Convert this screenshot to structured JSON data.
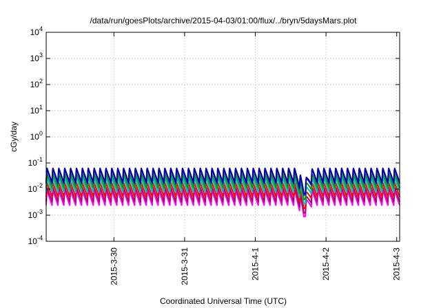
{
  "chart_data": {
    "type": "line",
    "title": "/data/run/goesPlots/archive/2015-04-03/01:00/flux/../bryn/5daysMars.plot",
    "xlabel": "Coordinated Universal Time (UTC)",
    "ylabel": "cGy/day",
    "y_scale": "log",
    "ylim": [
      0.0001,
      10000
    ],
    "xlim": [
      "2015-03-29 01:00",
      "2015-04-03 01:00"
    ],
    "grid": true,
    "x_ticks": [
      "2015-3-30",
      "2015-3-31",
      "2015-4-1",
      "2015-4-2",
      "2015-4-3"
    ],
    "y_ticks": [
      {
        "base": "10",
        "exp": "-4",
        "value": 0.0001
      },
      {
        "base": "10",
        "exp": "-3",
        "value": 0.001
      },
      {
        "base": "10",
        "exp": "-2",
        "value": 0.01
      },
      {
        "base": "10",
        "exp": "-1",
        "value": 0.1
      },
      {
        "base": "10",
        "exp": "0",
        "value": 1
      },
      {
        "base": "10",
        "exp": "1",
        "value": 10
      },
      {
        "base": "10",
        "exp": "2",
        "value": 100
      },
      {
        "base": "10",
        "exp": "3",
        "value": 1000
      },
      {
        "base": "10",
        "exp": "4",
        "value": 10000
      }
    ],
    "pattern": {
      "cycle_hours": 2,
      "notes": "sawtooth dose-rate pattern: sharp rise then decay over each ~2h cycle"
    },
    "series": [
      {
        "color": "#ff00ff",
        "peak": 0.009,
        "trough": 0.0024
      },
      {
        "color": "#b0006e",
        "peak": 0.012,
        "trough": 0.0033
      },
      {
        "color": "#ff0000",
        "peak": 0.018,
        "trough": 0.005
      },
      {
        "color": "#00bfbf",
        "peak": 0.028,
        "trough": 0.0075
      },
      {
        "color": "#00a000",
        "peak": 0.04,
        "trough": 0.011
      },
      {
        "color": "#1a1aff",
        "peak": 0.06,
        "trough": 0.016
      },
      {
        "color": "#0000aa",
        "peak": 0.065,
        "trough": 0.018
      }
    ],
    "dip": {
      "at": "2015-04-01 16:30",
      "min_factor": 0.25
    }
  }
}
